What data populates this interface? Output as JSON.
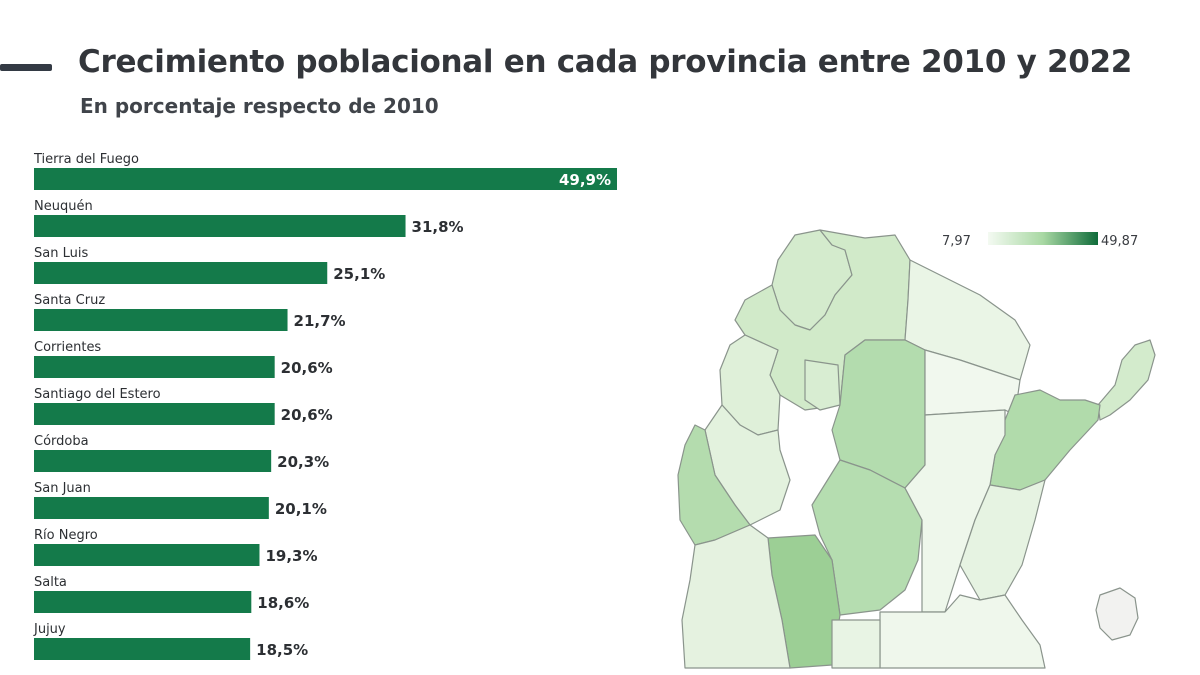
{
  "header": {
    "title": "Crecimiento poblacional en cada provincia entre 2010 y 2022",
    "subtitle": "En porcentaje respecto de 2010"
  },
  "colors": {
    "bar": "#147a4a",
    "accent": "#333a44",
    "scale_low": "#f2f8f1",
    "scale_high": "#0f6b3a"
  },
  "chart_data": {
    "type": "bar",
    "orientation": "horizontal",
    "title": "Crecimiento poblacional en cada provincia entre 2010 y 2022",
    "subtitle": "En porcentaje respecto de 2010",
    "categories": [
      "Tierra del Fuego",
      "Neuquén",
      "San Luis",
      "Santa Cruz",
      "Corrientes",
      "Santiago del Estero",
      "Córdoba",
      "San Juan",
      "Río Negro",
      "Salta",
      "Jujuy"
    ],
    "values": [
      49.9,
      31.8,
      25.1,
      21.7,
      20.6,
      20.6,
      20.3,
      20.1,
      19.3,
      18.6,
      18.5
    ],
    "value_labels": [
      "49,9%",
      "31,8%",
      "25,1%",
      "21,7%",
      "20,6%",
      "20,6%",
      "20,3%",
      "20,1%",
      "19,3%",
      "18,6%",
      "18,5%"
    ],
    "xlim": [
      0,
      49.9
    ],
    "grid": false
  },
  "map": {
    "legend": {
      "min_label": "7,97",
      "max_label": "49,87",
      "min": 7.97,
      "max": 49.87
    }
  }
}
